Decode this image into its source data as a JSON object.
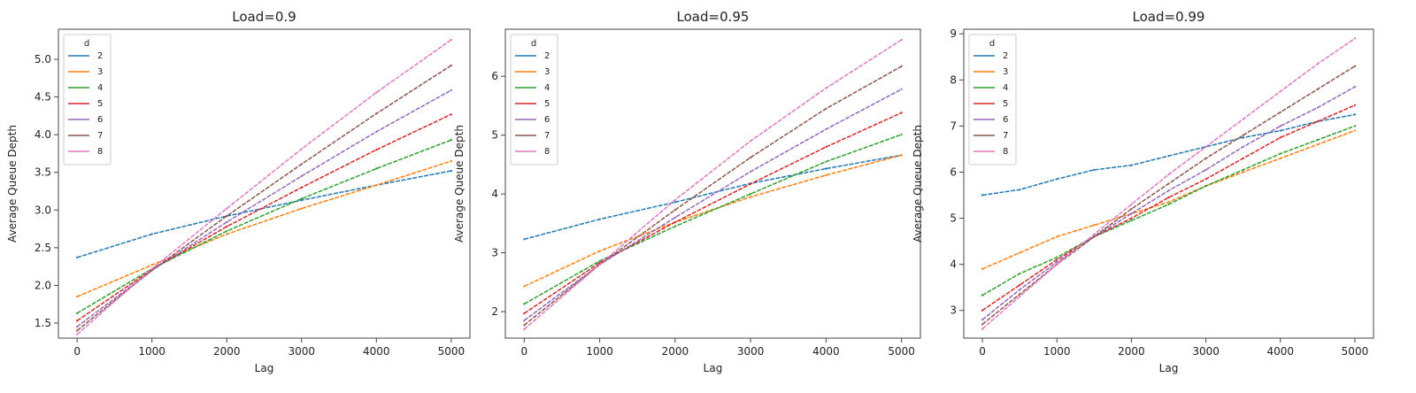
{
  "chart_data": [
    {
      "type": "line",
      "title": "Load=0.9",
      "xlabel": "Lag",
      "ylabel": "Average Queue Depth",
      "xlim": [
        -250,
        5250
      ],
      "ylim": [
        1.3,
        5.4
      ],
      "xticks": [
        0,
        1000,
        2000,
        3000,
        4000,
        5000
      ],
      "yticks": [
        1.5,
        2.0,
        2.5,
        3.0,
        3.5,
        4.0,
        4.5,
        5.0
      ],
      "ytick_labels": [
        "1.5",
        "2.0",
        "2.5",
        "3.0",
        "3.5",
        "4.0",
        "4.5",
        "5.0"
      ],
      "legend": {
        "title": "d",
        "placement": "top-left"
      },
      "series": [
        {
          "name": "2",
          "color": "#1f77b4",
          "x": [
            0,
            1000,
            2000,
            3000,
            4000,
            5000
          ],
          "y": [
            2.37,
            2.68,
            2.92,
            3.13,
            3.33,
            3.52
          ]
        },
        {
          "name": "3",
          "color": "#ff7f0e",
          "x": [
            0,
            1000,
            2000,
            3000,
            4000,
            5000
          ],
          "y": [
            1.85,
            2.27,
            2.68,
            3.02,
            3.33,
            3.65
          ]
        },
        {
          "name": "4",
          "color": "#2ca02c",
          "x": [
            0,
            1000,
            2000,
            3000,
            4000,
            5000
          ],
          "y": [
            1.63,
            2.22,
            2.72,
            3.15,
            3.55,
            3.93
          ]
        },
        {
          "name": "5",
          "color": "#d62728",
          "x": [
            0,
            1000,
            2000,
            3000,
            4000,
            5000
          ],
          "y": [
            1.53,
            2.21,
            2.78,
            3.3,
            3.8,
            4.27
          ]
        },
        {
          "name": "6",
          "color": "#9467bd",
          "x": [
            0,
            1000,
            2000,
            3000,
            4000,
            5000
          ],
          "y": [
            1.45,
            2.2,
            2.84,
            3.45,
            4.04,
            4.59
          ]
        },
        {
          "name": "7",
          "color": "#8c564b",
          "x": [
            0,
            1000,
            2000,
            3000,
            4000,
            5000
          ],
          "y": [
            1.4,
            2.2,
            2.92,
            3.61,
            4.28,
            4.92
          ]
        },
        {
          "name": "8",
          "color": "#e377c2",
          "x": [
            0,
            1000,
            2000,
            3000,
            4000,
            5000
          ],
          "y": [
            1.35,
            2.22,
            3.02,
            3.81,
            4.56,
            5.26
          ]
        }
      ]
    },
    {
      "type": "line",
      "title": "Load=0.95",
      "xlabel": "Lag",
      "ylabel": "Average Queue Depth",
      "xlim": [
        -250,
        5250
      ],
      "ylim": [
        1.55,
        6.8
      ],
      "xticks": [
        0,
        1000,
        2000,
        3000,
        4000,
        5000
      ],
      "yticks": [
        2,
        3,
        4,
        5,
        6
      ],
      "ytick_labels": [
        "2",
        "3",
        "4",
        "5",
        "6"
      ],
      "legend": {
        "title": "d",
        "placement": "top-left"
      },
      "series": [
        {
          "name": "2",
          "color": "#1f77b4",
          "x": [
            0,
            1000,
            2000,
            3000,
            4000,
            5000
          ],
          "y": [
            3.23,
            3.57,
            3.86,
            4.18,
            4.43,
            4.66
          ]
        },
        {
          "name": "3",
          "color": "#ff7f0e",
          "x": [
            0,
            1000,
            2000,
            3000,
            4000,
            5000
          ],
          "y": [
            2.43,
            3.03,
            3.52,
            3.95,
            4.32,
            4.66
          ]
        },
        {
          "name": "4",
          "color": "#2ca02c",
          "x": [
            0,
            1000,
            2000,
            3000,
            4000,
            5000
          ],
          "y": [
            2.13,
            2.86,
            3.45,
            4.0,
            4.55,
            5.01
          ]
        },
        {
          "name": "5",
          "color": "#d62728",
          "x": [
            0,
            1000,
            2000,
            3000,
            4000,
            5000
          ],
          "y": [
            1.97,
            2.83,
            3.52,
            4.17,
            4.8,
            5.38
          ]
        },
        {
          "name": "6",
          "color": "#9467bd",
          "x": [
            0,
            1000,
            2000,
            3000,
            4000,
            5000
          ],
          "y": [
            1.85,
            2.8,
            3.6,
            4.38,
            5.1,
            5.78
          ]
        },
        {
          "name": "7",
          "color": "#8c564b",
          "x": [
            0,
            1000,
            2000,
            3000,
            4000,
            5000
          ],
          "y": [
            1.77,
            2.8,
            3.73,
            4.62,
            5.45,
            6.17
          ]
        },
        {
          "name": "8",
          "color": "#e377c2",
          "x": [
            0,
            1000,
            2000,
            3000,
            4000,
            5000
          ],
          "y": [
            1.7,
            2.8,
            3.9,
            4.9,
            5.8,
            6.62
          ]
        }
      ]
    },
    {
      "type": "line",
      "title": "Load=0.99",
      "xlabel": "Lag",
      "ylabel": "Average Queue Depth",
      "xlim": [
        -250,
        5250
      ],
      "ylim": [
        2.4,
        9.1
      ],
      "xticks": [
        0,
        1000,
        2000,
        3000,
        4000,
        5000
      ],
      "yticks": [
        3,
        4,
        5,
        6,
        7,
        8,
        9
      ],
      "ytick_labels": [
        "3",
        "4",
        "5",
        "6",
        "7",
        "8",
        "9"
      ],
      "legend": {
        "title": "d",
        "placement": "top-left"
      },
      "series": [
        {
          "name": "2",
          "color": "#1f77b4",
          "x": [
            0,
            500,
            1000,
            1500,
            2000,
            2500,
            3000,
            3500,
            4000,
            4500,
            5000
          ],
          "y": [
            5.5,
            5.62,
            5.85,
            6.05,
            6.15,
            6.35,
            6.55,
            6.75,
            6.9,
            7.1,
            7.25
          ]
        },
        {
          "name": "3",
          "color": "#ff7f0e",
          "x": [
            0,
            500,
            1000,
            1500,
            2000,
            2500,
            3000,
            3500,
            4000,
            4500,
            5000
          ],
          "y": [
            3.9,
            4.25,
            4.6,
            4.85,
            5.1,
            5.35,
            5.7,
            6.0,
            6.3,
            6.6,
            6.9
          ]
        },
        {
          "name": "4",
          "color": "#2ca02c",
          "x": [
            0,
            500,
            1000,
            1500,
            2000,
            2500,
            3000,
            3500,
            4000,
            4500,
            5000
          ],
          "y": [
            3.33,
            3.8,
            4.15,
            4.6,
            4.95,
            5.3,
            5.7,
            6.05,
            6.4,
            6.7,
            7.0
          ]
        },
        {
          "name": "5",
          "color": "#d62728",
          "x": [
            0,
            500,
            1000,
            1500,
            2000,
            2500,
            3000,
            3500,
            4000,
            4500,
            5000
          ],
          "y": [
            3.0,
            3.55,
            4.1,
            4.6,
            5.0,
            5.45,
            5.85,
            6.3,
            6.75,
            7.1,
            7.45
          ]
        },
        {
          "name": "6",
          "color": "#9467bd",
          "x": [
            0,
            500,
            1000,
            1500,
            2000,
            2500,
            3000,
            3500,
            4000,
            4500,
            5000
          ],
          "y": [
            2.8,
            3.45,
            4.05,
            4.6,
            5.1,
            5.6,
            6.05,
            6.55,
            7.0,
            7.4,
            7.85
          ]
        },
        {
          "name": "7",
          "color": "#8c564b",
          "x": [
            0,
            500,
            1000,
            1500,
            2000,
            2500,
            3000,
            3500,
            4000,
            4500,
            5000
          ],
          "y": [
            2.7,
            3.35,
            4.0,
            4.6,
            5.2,
            5.75,
            6.3,
            6.8,
            7.3,
            7.8,
            8.3
          ]
        },
        {
          "name": "8",
          "color": "#e377c2",
          "x": [
            0,
            500,
            1000,
            1500,
            2000,
            2500,
            3000,
            3500,
            4000,
            4500,
            5000
          ],
          "y": [
            2.6,
            3.3,
            4.0,
            4.65,
            5.3,
            5.95,
            6.55,
            7.15,
            7.75,
            8.35,
            8.9
          ]
        }
      ]
    }
  ]
}
